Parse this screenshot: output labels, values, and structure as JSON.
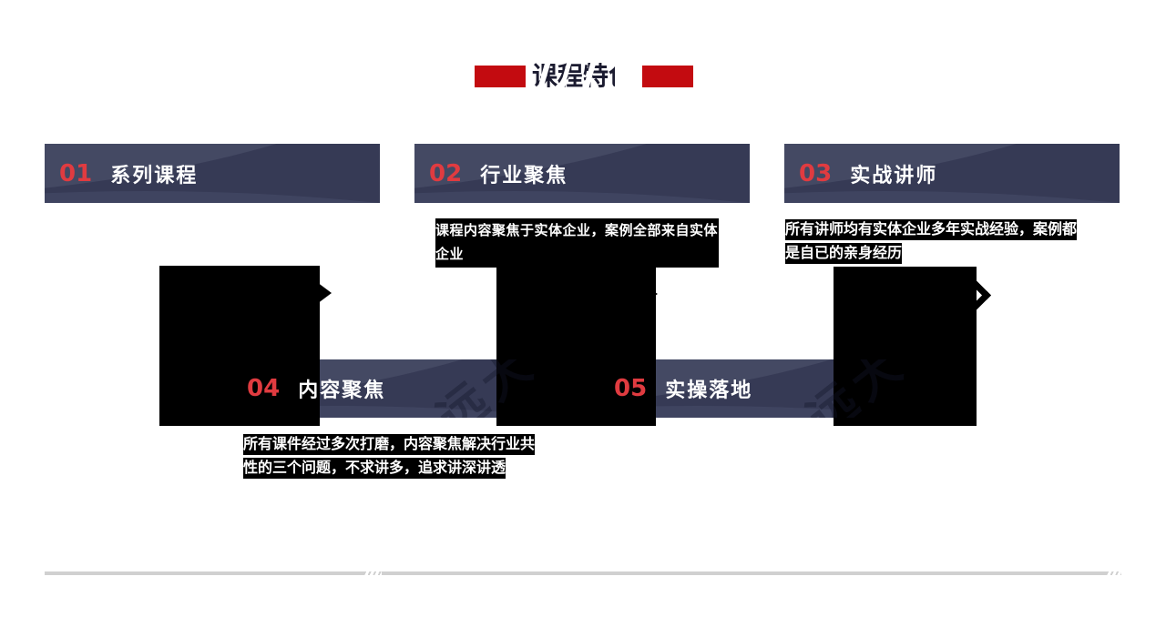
{
  "title": {
    "text": "课程特色"
  },
  "cards": [
    {
      "number": "01",
      "title": "系列课程"
    },
    {
      "number": "02",
      "title": "行业聚焦",
      "description": "课程内容聚焦于实体企业，案例全部来自实体企业"
    },
    {
      "number": "03",
      "title": "实战讲师",
      "description": "所有讲师均有实体企业多年实战经验，案例都是自已的亲身经历"
    },
    {
      "number": "04",
      "title": "内容聚焦",
      "description": "所有课件经过多次打磨，内容聚焦解决行业共性的三个问题，不求讲多，追求讲深讲透",
      "watermark": "远大"
    },
    {
      "number": "05",
      "title": "实操落地",
      "watermark": "远大"
    }
  ],
  "icons": {
    "step_arrow_1": "arrow-right-icon",
    "step_arrow_2": "arrow-right-icon",
    "step_arrow_3": "chevron-right-icon"
  },
  "colors": {
    "accent_red_block": "#c30b10",
    "card_number_red": "#e03b40",
    "bar_base": "#363a55",
    "bar_highlight": "#444963",
    "title_text": "#1b1b30",
    "description_bg": "#000000",
    "description_text": "#ffffff",
    "image_box": "#000000",
    "divider": "#d0d0d0"
  }
}
